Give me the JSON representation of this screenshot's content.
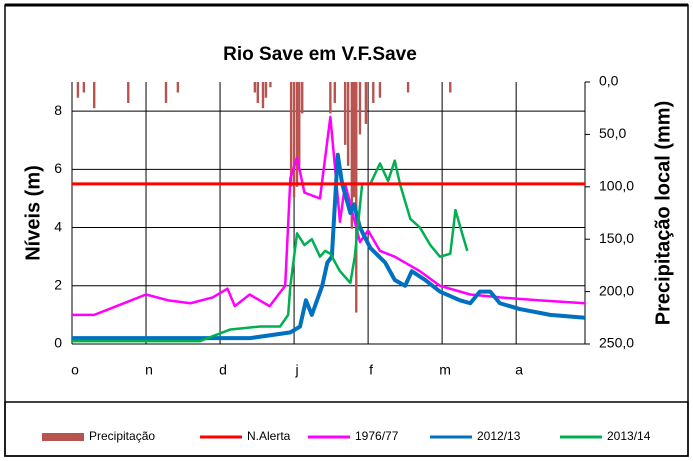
{
  "chart_data": {
    "type": "line",
    "title": "Rio Save em V.F.Save",
    "y_label": "Níveis (m)",
    "y2_label": "Precipitação local  (mm)",
    "xlim": [
      0,
      6.93
    ],
    "xticks": [
      {
        "value": 0,
        "label": "o"
      },
      {
        "value": 1,
        "label": "n"
      },
      {
        "value": 2,
        "label": "d"
      },
      {
        "value": 3,
        "label": "j"
      },
      {
        "value": 4,
        "label": "f"
      },
      {
        "value": 5,
        "label": "m"
      },
      {
        "value": 6,
        "label": "a"
      }
    ],
    "ylim": [
      0,
      9
    ],
    "yticks": [
      0,
      2,
      4,
      6,
      8
    ],
    "y2lim": [
      250,
      0
    ],
    "y2ticks": [
      {
        "value": 0,
        "label": "0,0"
      },
      {
        "value": 50,
        "label": "50,0"
      },
      {
        "value": 100,
        "label": "100,0"
      },
      {
        "value": 150,
        "label": "150,0"
      },
      {
        "value": 200,
        "label": "200,0"
      },
      {
        "value": 250,
        "label": "250,0"
      }
    ],
    "grid": true,
    "legend": "bottom",
    "series": [
      {
        "name": "Precipitação",
        "type": "bar",
        "axis": "y2",
        "color": "#b85450",
        "x": [
          0.08,
          0.16,
          0.3,
          0.76,
          1.27,
          1.43,
          2.47,
          2.51,
          2.58,
          2.62,
          2.68,
          2.96,
          3.0,
          3.04,
          3.07,
          3.11,
          3.49,
          3.55,
          3.69,
          3.73,
          3.78,
          3.81,
          3.84,
          3.89,
          3.97,
          4.07,
          4.16,
          4.54,
          5.11
        ],
        "values": [
          15,
          10,
          25,
          20,
          20,
          10,
          10,
          20,
          25,
          15,
          5,
          100,
          110,
          100,
          80,
          30,
          30,
          20,
          60,
          80,
          140,
          110,
          220,
          50,
          40,
          20,
          15,
          10,
          10
        ]
      },
      {
        "name": "N.Alerta",
        "type": "line",
        "color": "#ff0000",
        "x": [
          0,
          6.93
        ],
        "values": [
          5.5,
          5.5
        ]
      },
      {
        "name": "1976/77",
        "type": "line",
        "color": "#ff00ff",
        "x": [
          0,
          0.3,
          0.6,
          1.0,
          1.3,
          1.6,
          1.9,
          2.1,
          2.2,
          2.4,
          2.67,
          2.88,
          2.95,
          3.04,
          3.14,
          3.35,
          3.49,
          3.62,
          3.69,
          3.89,
          4.0,
          4.16,
          4.36,
          4.7,
          4.97,
          5.38,
          5.78,
          6.32,
          6.93
        ],
        "values": [
          1.0,
          1.0,
          1.3,
          1.7,
          1.5,
          1.4,
          1.6,
          1.9,
          1.3,
          1.7,
          1.3,
          2.0,
          5.7,
          6.4,
          5.2,
          5.0,
          7.8,
          4.2,
          5.5,
          3.5,
          3.9,
          3.2,
          3.0,
          2.5,
          2.0,
          1.7,
          1.6,
          1.5,
          1.4
        ]
      },
      {
        "name": "2012/13",
        "type": "line",
        "color": "#0070c0",
        "x": [
          0,
          1.0,
          2.0,
          2.4,
          2.68,
          2.95,
          3.08,
          3.16,
          3.24,
          3.38,
          3.45,
          3.51,
          3.59,
          3.65,
          3.76,
          3.81,
          3.89,
          4.03,
          4.23,
          4.36,
          4.5,
          4.59,
          4.77,
          4.97,
          5.24,
          5.38,
          5.51,
          5.65,
          5.78,
          6.05,
          6.46,
          6.93
        ],
        "values": [
          0.2,
          0.2,
          0.2,
          0.2,
          0.3,
          0.4,
          0.6,
          1.5,
          1.0,
          2.0,
          2.8,
          3.0,
          6.5,
          5.5,
          4.5,
          4.8,
          4.0,
          3.3,
          2.8,
          2.2,
          2.0,
          2.5,
          2.2,
          1.8,
          1.5,
          1.4,
          1.8,
          1.8,
          1.4,
          1.2,
          1.0,
          0.9
        ]
      },
      {
        "name": "2013/14",
        "type": "line",
        "color": "#00b050",
        "x": [
          0,
          1.0,
          1.73,
          2.14,
          2.54,
          2.81,
          2.92,
          2.95,
          3.04,
          3.14,
          3.24,
          3.35,
          3.42,
          3.49,
          3.62,
          3.76,
          3.82,
          3.92,
          4.03,
          4.16,
          4.27,
          4.36,
          4.43,
          4.57,
          4.7,
          4.84,
          4.97,
          5.11,
          5.18,
          5.27,
          5.34
        ],
        "values": [
          0.1,
          0.1,
          0.1,
          0.5,
          0.6,
          0.6,
          1.0,
          2.0,
          3.8,
          3.4,
          3.6,
          3.0,
          3.2,
          3.1,
          2.5,
          2.1,
          3.0,
          5.5,
          5.5,
          6.2,
          5.6,
          6.3,
          5.5,
          4.3,
          4.0,
          3.4,
          3.0,
          3.1,
          4.6,
          3.8,
          3.2
        ]
      }
    ]
  }
}
